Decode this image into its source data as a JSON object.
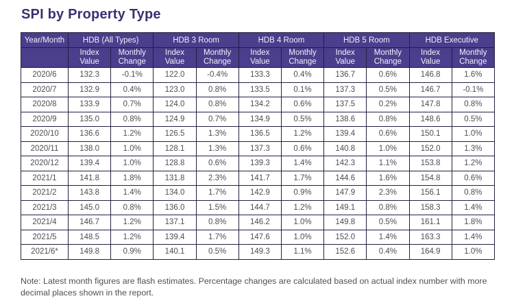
{
  "title": "SPI by Property Type",
  "note": "Note: Latest month figures are flash estimates. Percentage changes are calculated based on actual index number with more decimal places shown in the report.",
  "colors": {
    "header_bg": "#4B3E8C",
    "header_text": "#F2F0FA",
    "title_text": "#3B2F72",
    "border": "#241E3F",
    "cell_text": "#4D4D4D"
  },
  "chart_data": {
    "type": "table",
    "title": "SPI by Property Type",
    "row_header": "Year/Month",
    "groups": [
      "HDB (All Types)",
      "HDB 3 Room",
      "HDB 4 Room",
      "HDB 5 Room",
      "HDB Executive"
    ],
    "subheaders": [
      "Index Value",
      "Monthly Change"
    ],
    "rows": [
      [
        "2020/6",
        "132.3",
        "-0.1%",
        "122.0",
        "-0.4%",
        "133.3",
        "0.4%",
        "136.7",
        "0.6%",
        "146.8",
        "1.6%"
      ],
      [
        "2020/7",
        "132.9",
        "0.4%",
        "123.0",
        "0.8%",
        "133.5",
        "0.1%",
        "137.3",
        "0.5%",
        "146.7",
        "-0.1%"
      ],
      [
        "2020/8",
        "133.9",
        "0.7%",
        "124.0",
        "0.8%",
        "134.2",
        "0.6%",
        "137.5",
        "0.2%",
        "147.8",
        "0.8%"
      ],
      [
        "2020/9",
        "135.0",
        "0.8%",
        "124.9",
        "0.7%",
        "134.9",
        "0.5%",
        "138.6",
        "0.8%",
        "148.6",
        "0.5%"
      ],
      [
        "2020/10",
        "136.6",
        "1.2%",
        "126.5",
        "1.3%",
        "136.5",
        "1.2%",
        "139.4",
        "0.6%",
        "150.1",
        "1.0%"
      ],
      [
        "2020/11",
        "138.0",
        "1.0%",
        "128.1",
        "1.3%",
        "137.3",
        "0.6%",
        "140.8",
        "1.0%",
        "152.0",
        "1.3%"
      ],
      [
        "2020/12",
        "139.4",
        "1.0%",
        "128.8",
        "0.6%",
        "139.3",
        "1.4%",
        "142.3",
        "1.1%",
        "153.8",
        "1.2%"
      ],
      [
        "2021/1",
        "141.8",
        "1.8%",
        "131.8",
        "2.3%",
        "141.7",
        "1.7%",
        "144.6",
        "1.6%",
        "154.8",
        "0.6%"
      ],
      [
        "2021/2",
        "143.8",
        "1.4%",
        "134.0",
        "1.7%",
        "142.9",
        "0.9%",
        "147.9",
        "2.3%",
        "156.1",
        "0.8%"
      ],
      [
        "2021/3",
        "145.0",
        "0.8%",
        "136.0",
        "1.5%",
        "144.7",
        "1.2%",
        "149.1",
        "0.8%",
        "158.3",
        "1.4%"
      ],
      [
        "2021/4",
        "146.7",
        "1.2%",
        "137.1",
        "0.8%",
        "146.2",
        "1.0%",
        "149.8",
        "0.5%",
        "161.1",
        "1.8%"
      ],
      [
        "2021/5",
        "148.5",
        "1.2%",
        "139.4",
        "1.7%",
        "147.6",
        "1.0%",
        "152.0",
        "1.4%",
        "163.3",
        "1.4%"
      ],
      [
        "2021/6*",
        "149.8",
        "0.9%",
        "140.1",
        "0.5%",
        "149.3",
        "1.1%",
        "152.6",
        "0.4%",
        "164.9",
        "1.0%"
      ]
    ]
  }
}
